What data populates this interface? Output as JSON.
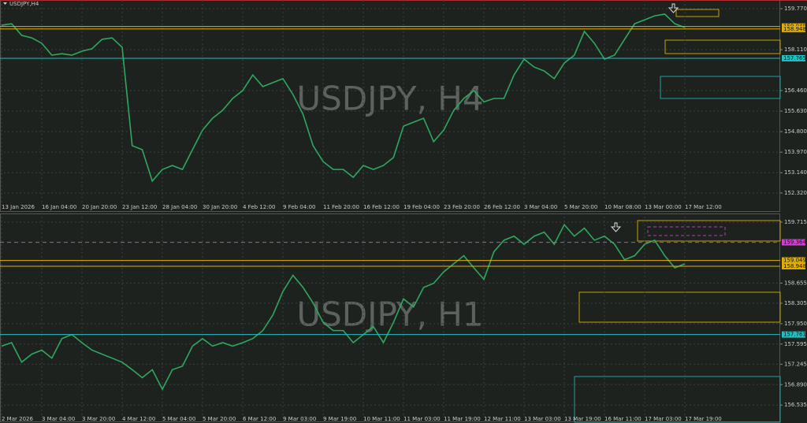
{
  "chart_data": [
    {
      "type": "line",
      "title": "USDJPY,H4",
      "watermark": "USDJPY, H4",
      "color": "#2fa85e",
      "grid": true,
      "categories": [
        "13 Jan 2026",
        null,
        null,
        null,
        "16 Jan 04:00",
        null,
        null,
        null,
        "20 Jan 20:00",
        null,
        null,
        null,
        "23 Jan 12:00",
        null,
        null,
        null,
        "28 Jan 04:00",
        null,
        null,
        null,
        "30 Jan 20:00",
        null,
        null,
        null,
        "4 Feb 12:00",
        null,
        null,
        null,
        "9 Feb 04:00",
        null,
        null,
        null,
        "11 Feb 20:00",
        null,
        null,
        null,
        "16 Feb 12:00",
        null,
        null,
        null,
        "19 Feb 04:00",
        null,
        null,
        null,
        "23 Feb 20:00",
        null,
        null,
        null,
        "26 Feb 12:00",
        null,
        null,
        null,
        "3 Mar 04:00",
        null,
        null,
        null,
        "5 Mar 20:00",
        null,
        null,
        null,
        "10 Mar 08:00",
        null,
        null,
        null,
        "13 Mar 00:00",
        null,
        null,
        null,
        "17 Mar 12:00"
      ],
      "values": [
        159.1,
        159.16,
        158.69,
        158.59,
        158.37,
        157.89,
        157.95,
        157.89,
        158.05,
        158.15,
        158.53,
        158.59,
        158.21,
        154.23,
        154.07,
        152.8,
        153.27,
        153.43,
        153.27,
        154.07,
        154.86,
        155.34,
        155.66,
        156.14,
        156.46,
        157.09,
        156.62,
        156.78,
        156.94,
        156.3,
        155.5,
        154.23,
        153.59,
        153.27,
        153.27,
        152.95,
        153.43,
        153.27,
        153.43,
        153.75,
        155.02,
        155.18,
        155.34,
        154.39,
        154.86,
        155.66,
        156.14,
        156.46,
        156.0,
        156.14,
        156.14,
        157.09,
        157.73,
        157.41,
        157.25,
        156.94,
        157.57,
        157.89,
        158.85,
        158.37,
        157.73,
        157.89,
        158.53,
        159.16,
        159.32,
        159.48,
        159.55,
        159.16,
        159.01
      ],
      "ylim": [
        152.0,
        160.12
      ],
      "yticks": [
        {
          "value": 159.77,
          "label": "159.770"
        },
        {
          "value": 158.11,
          "label": "158.110"
        },
        {
          "value": 156.46,
          "label": "156.460"
        },
        {
          "value": 155.63,
          "label": "155.630"
        },
        {
          "value": 154.8,
          "label": "154.800"
        },
        {
          "value": 153.97,
          "label": "153.970"
        },
        {
          "value": 153.14,
          "label": "153.140"
        },
        {
          "value": 152.32,
          "label": "152.320"
        }
      ],
      "levels": [
        {
          "value": 159.049,
          "color": "#e0b000"
        },
        {
          "value": 158.948,
          "color": "#e0b000"
        },
        {
          "value": 157.765,
          "color": "#20c0c0"
        }
      ]
    },
    {
      "type": "line",
      "watermark": "USDJPY, H1",
      "color": "#2fa85e",
      "grid": true,
      "categories": [
        "2 Mar 2026",
        null,
        null,
        null,
        "3 Mar 04:00",
        null,
        null,
        null,
        "3 Mar 20:00",
        null,
        null,
        null,
        "4 Mar 12:00",
        null,
        null,
        null,
        "5 Mar 04:00",
        null,
        null,
        null,
        "5 Mar 20:00",
        null,
        null,
        null,
        "6 Mar 12:00",
        null,
        null,
        null,
        "9 Mar 03:00",
        null,
        null,
        null,
        "9 Mar 19:00",
        null,
        null,
        null,
        "10 Mar 11:00",
        null,
        null,
        null,
        "11 Mar 03:00",
        null,
        null,
        null,
        "11 Mar 19:00",
        null,
        null,
        null,
        "12 Mar 11:00",
        null,
        null,
        null,
        "13 Mar 03:00",
        null,
        null,
        null,
        "13 Mar 19:00",
        null,
        null,
        null,
        "16 Mar 11:00",
        null,
        null,
        null,
        "17 Mar 03:00",
        null,
        null,
        null,
        "17 Mar 19:00"
      ],
      "values": [
        157.56,
        157.62,
        157.28,
        157.42,
        157.49,
        157.35,
        157.69,
        157.76,
        157.62,
        157.49,
        157.42,
        157.35,
        157.28,
        157.15,
        157.01,
        157.15,
        156.81,
        157.15,
        157.21,
        157.56,
        157.69,
        157.56,
        157.62,
        157.56,
        157.62,
        157.69,
        157.83,
        158.1,
        158.51,
        158.79,
        158.58,
        158.31,
        157.97,
        157.83,
        157.83,
        157.62,
        157.76,
        157.9,
        157.62,
        157.97,
        158.38,
        158.24,
        158.58,
        158.65,
        158.85,
        158.99,
        159.13,
        158.92,
        158.72,
        159.2,
        159.4,
        159.47,
        159.33,
        159.47,
        159.54,
        159.33,
        159.67,
        159.47,
        159.61,
        159.4,
        159.47,
        159.33,
        159.06,
        159.13,
        159.33,
        159.4,
        159.13,
        158.92,
        158.99
      ],
      "ylim": [
        156.36,
        159.81
      ],
      "yticks": [
        159.715,
        158.655,
        158.305,
        {
          "value": 157.95,
          "label": "157.950"
        },
        157.595,
        157.245,
        {
          "value": 156.89,
          "label": "156.890"
        },
        156.535
      ],
      "levels": [
        {
          "value": 159.364,
          "color": "#d040d0"
        },
        {
          "value": 159.049,
          "color": "#e0b000"
        },
        {
          "value": 158.948,
          "color": "#e0b000"
        },
        {
          "value": 157.761,
          "color": "#20c0c0"
        }
      ]
    }
  ]
}
